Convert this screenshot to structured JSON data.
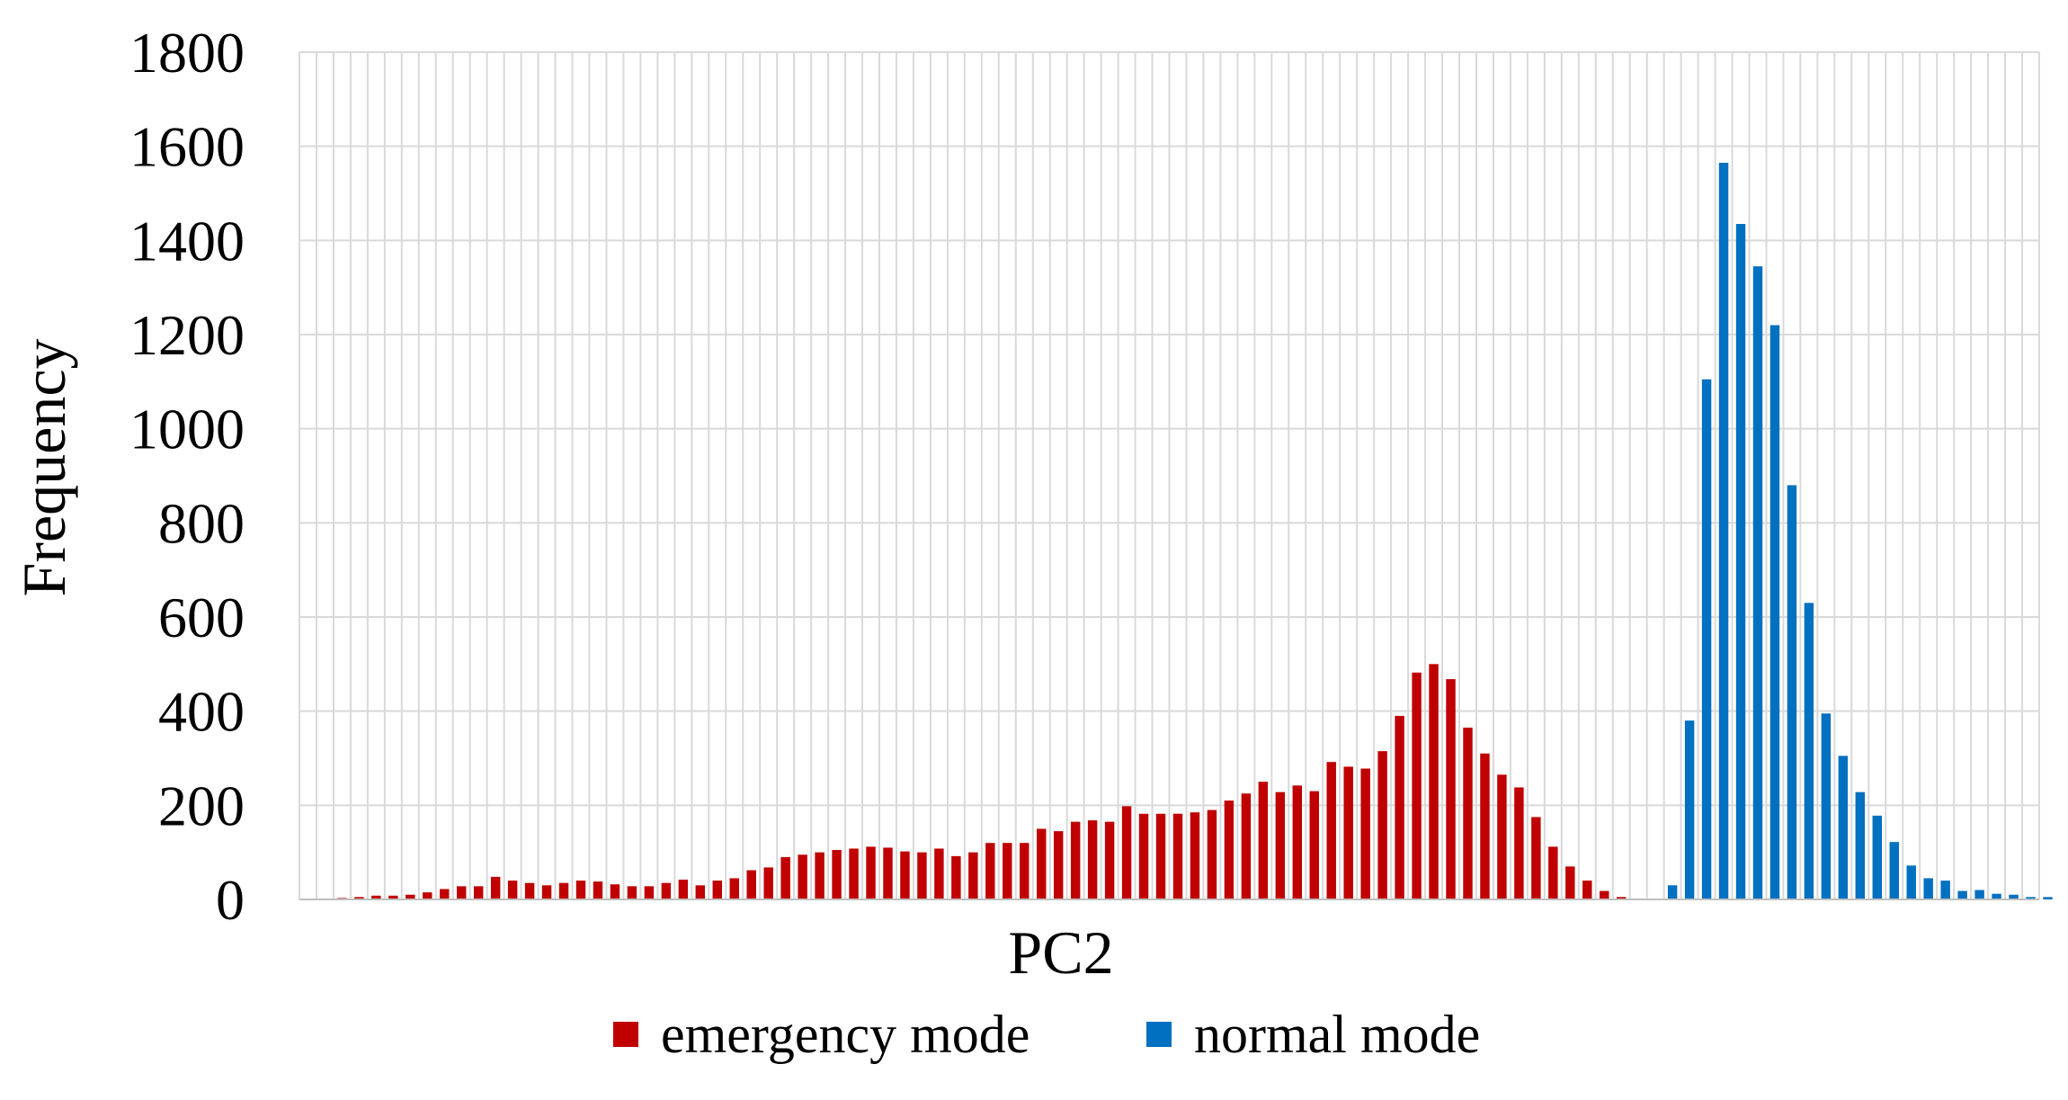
{
  "chart_data": {
    "type": "bar",
    "title": "",
    "xlabel": "PC2",
    "ylabel": "Frequency",
    "ylim": [
      0,
      1800
    ],
    "yticks": [
      "0",
      "200",
      "400",
      "600",
      "800",
      "1000",
      "1200",
      "1400",
      "1600",
      "1800"
    ],
    "grid": true,
    "legend_position": "bottom-center",
    "series": [
      {
        "name": "emergency mode",
        "color": "#c00000",
        "values": [
          1,
          2,
          3,
          5,
          8,
          8,
          10,
          15,
          22,
          28,
          28,
          48,
          40,
          35,
          30,
          35,
          40,
          38,
          32,
          28,
          28,
          35,
          42,
          30,
          40,
          45,
          62,
          68,
          90,
          95,
          100,
          105,
          108,
          112,
          110,
          102,
          100,
          108,
          92,
          100,
          120,
          120,
          120,
          150,
          145,
          165,
          168,
          165,
          198,
          182,
          182,
          182,
          185,
          190,
          210,
          225,
          250,
          228,
          242,
          230,
          292,
          282,
          278,
          315,
          390,
          482,
          500,
          468,
          365,
          310,
          265,
          238,
          175,
          112,
          70,
          40,
          18,
          5,
          2,
          0,
          0,
          0,
          0,
          0,
          0,
          0,
          0,
          0,
          0,
          0,
          0,
          0,
          0,
          0,
          0,
          0,
          0,
          0,
          0,
          0,
          0,
          0
        ]
      },
      {
        "name": "normal mode",
        "color": "#0070c0",
        "values": [
          0,
          0,
          0,
          0,
          0,
          0,
          0,
          0,
          0,
          0,
          0,
          0,
          0,
          0,
          0,
          0,
          0,
          0,
          0,
          0,
          0,
          0,
          0,
          0,
          0,
          0,
          0,
          0,
          0,
          0,
          0,
          0,
          0,
          0,
          0,
          0,
          0,
          0,
          0,
          0,
          0,
          0,
          0,
          0,
          0,
          0,
          0,
          0,
          0,
          0,
          0,
          0,
          0,
          0,
          0,
          0,
          0,
          0,
          0,
          0,
          0,
          0,
          0,
          0,
          0,
          0,
          0,
          0,
          0,
          0,
          0,
          0,
          0,
          0,
          0,
          0,
          0,
          0,
          0,
          0,
          30,
          380,
          1105,
          1565,
          1435,
          1345,
          1220,
          880,
          630,
          395,
          305,
          228,
          178,
          122,
          72,
          45,
          40,
          18,
          20,
          12,
          10,
          5,
          5
        ]
      }
    ]
  }
}
